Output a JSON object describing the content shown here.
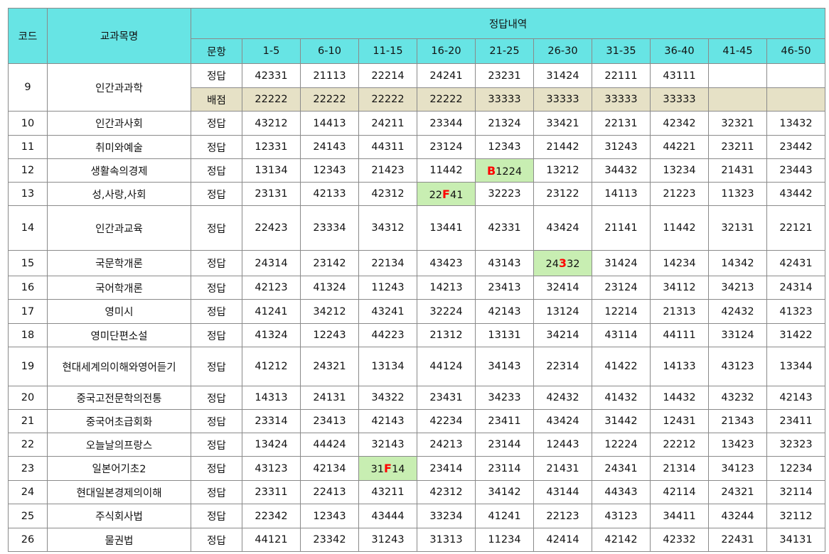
{
  "header": {
    "code": "코드",
    "subject": "교과목명",
    "answers_group": "정답내역",
    "question": "문항",
    "ranges": [
      "1-5",
      "6-10",
      "11-15",
      "16-20",
      "21-25",
      "26-30",
      "31-35",
      "36-40",
      "41-45",
      "46-50"
    ]
  },
  "rows": [
    {
      "code": "9",
      "subject": "인간과과학",
      "label": "정답",
      "values": [
        "42331",
        "21113",
        "22214",
        "24241",
        "23231",
        "31424",
        "22111",
        "43111",
        "",
        ""
      ],
      "points_label": "배점",
      "points": [
        "22222",
        "22222",
        "22222",
        "22222",
        "33333",
        "33333",
        "33333",
        "33333",
        "",
        ""
      ]
    },
    {
      "code": "10",
      "subject": "인간과사회",
      "label": "정답",
      "values": [
        "43212",
        "14413",
        "24211",
        "23344",
        "21324",
        "33421",
        "22131",
        "42342",
        "32321",
        "13432"
      ]
    },
    {
      "code": "11",
      "subject": "취미와예술",
      "label": "정답",
      "values": [
        "12331",
        "24143",
        "44311",
        "23124",
        "12343",
        "21442",
        "31243",
        "44221",
        "23211",
        "23442"
      ]
    },
    {
      "code": "12",
      "subject": "생활속의경제",
      "label": "정답",
      "values": [
        "13134",
        "12343",
        "21423",
        "11442",
        "B1224",
        "13212",
        "34432",
        "13234",
        "21431",
        "23443"
      ]
    },
    {
      "code": "13",
      "subject": "성,사랑,사회",
      "label": "정답",
      "values": [
        "23131",
        "42133",
        "42312",
        "22F41",
        "32223",
        "23122",
        "14113",
        "21223",
        "11323",
        "43442"
      ]
    },
    {
      "code": "14",
      "subject": "인간과교육",
      "label": "정답",
      "values": [
        "22423",
        "23334",
        "34312",
        "13441",
        "42331",
        "43424",
        "21141",
        "11442",
        "32131",
        "22121"
      ]
    },
    {
      "code": "15",
      "subject": "국문학개론",
      "label": "정답",
      "values": [
        "24314",
        "23142",
        "22134",
        "43423",
        "43143",
        "24332",
        "31424",
        "14234",
        "14342",
        "42431"
      ]
    },
    {
      "code": "16",
      "subject": "국어학개론",
      "label": "정답",
      "values": [
        "42123",
        "41324",
        "11243",
        "14213",
        "23413",
        "32414",
        "23124",
        "34112",
        "34213",
        "24314"
      ]
    },
    {
      "code": "17",
      "subject": "영미시",
      "label": "정답",
      "values": [
        "41241",
        "34212",
        "43241",
        "32224",
        "42143",
        "13124",
        "12214",
        "21313",
        "42432",
        "41323"
      ]
    },
    {
      "code": "18",
      "subject": "영미단편소설",
      "label": "정답",
      "values": [
        "41324",
        "12243",
        "44223",
        "21312",
        "13131",
        "34214",
        "43114",
        "44111",
        "33124",
        "31422"
      ]
    },
    {
      "code": "19",
      "subject": "현대세계의이해와영어듣기",
      "label": "정답",
      "values": [
        "41212",
        "24321",
        "13134",
        "44124",
        "34143",
        "22314",
        "41422",
        "14133",
        "43123",
        "13344"
      ]
    },
    {
      "code": "20",
      "subject": "중국고전문학의전통",
      "label": "정답",
      "values": [
        "14313",
        "24131",
        "34322",
        "23431",
        "34233",
        "42432",
        "41432",
        "14432",
        "43232",
        "42143"
      ]
    },
    {
      "code": "21",
      "subject": "중국어초급회화",
      "label": "정답",
      "values": [
        "23314",
        "23413",
        "42143",
        "42234",
        "23411",
        "43424",
        "31442",
        "12431",
        "21343",
        "23411"
      ]
    },
    {
      "code": "22",
      "subject": "오늘날의프랑스",
      "label": "정답",
      "values": [
        "13424",
        "44424",
        "32143",
        "24213",
        "23144",
        "12443",
        "12224",
        "22212",
        "13423",
        "32323"
      ]
    },
    {
      "code": "23",
      "subject": "일본어기초2",
      "label": "정답",
      "values": [
        "43123",
        "42134",
        "31F14",
        "23414",
        "23114",
        "21431",
        "24341",
        "21314",
        "34123",
        "12234"
      ]
    },
    {
      "code": "24",
      "subject": "현대일본경제의이해",
      "label": "정답",
      "values": [
        "23311",
        "22413",
        "43211",
        "42312",
        "34142",
        "43144",
        "44343",
        "42114",
        "24321",
        "32114"
      ]
    },
    {
      "code": "25",
      "subject": "주식회사법",
      "label": "정답",
      "values": [
        "22342",
        "12343",
        "43444",
        "33234",
        "41241",
        "22123",
        "43123",
        "34411",
        "43244",
        "32112"
      ]
    },
    {
      "code": "26",
      "subject": "물권법",
      "label": "정답",
      "values": [
        "44121",
        "23342",
        "31243",
        "31313",
        "11234",
        "42414",
        "42142",
        "42332",
        "22431",
        "34131"
      ]
    }
  ],
  "highlights": [
    {
      "row": 3,
      "col": 4,
      "char_index": 0
    },
    {
      "row": 4,
      "col": 3,
      "char_index": 2
    },
    {
      "row": 6,
      "col": 5,
      "char_index": 2
    },
    {
      "row": 14,
      "col": 2,
      "char_index": 2
    }
  ],
  "colors": {
    "header_bg": "#67e4e4",
    "points_bg": "#e6e1c6",
    "highlight_bg": "#c8eeb2",
    "highlight_text": "#ff0000",
    "border": "#8a8a8a"
  }
}
